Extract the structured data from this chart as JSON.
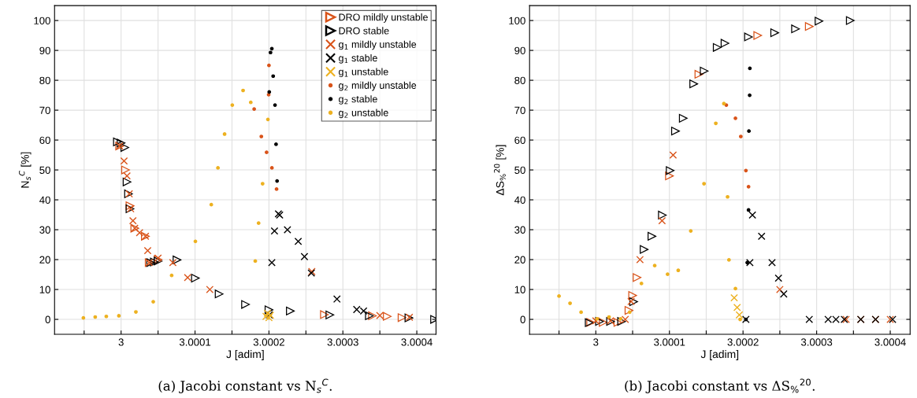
{
  "chart_data": [
    {
      "type": "scatter",
      "xlabel": "J [adim]",
      "ylabel": "N$_{s}$$^{C}$ [%]",
      "annotations": [
        "(a) Jacobi constant vs N$_{s}$$^{C}$."
      ],
      "xlim": [
        2.99991,
        3.000426
      ],
      "ylim": [
        -5,
        105
      ],
      "xticks": [
        {
          "value": 2.99995,
          "label": null
        },
        3,
        {
          "value": 3.00005,
          "label": null
        },
        3.0001,
        {
          "value": 3.00015,
          "label": null
        },
        3.0002,
        {
          "value": 3.00025,
          "label": null
        },
        3.0003,
        {
          "value": 3.00035,
          "label": null
        },
        3.0004
      ],
      "yticks": [
        0,
        10,
        20,
        30,
        40,
        50,
        60,
        70,
        80,
        90,
        100
      ],
      "grid": true,
      "legend": "top right",
      "series": [
        {
          "name": "DRO mildly unstable",
          "color": "#d95319",
          "marker": "triangle",
          "x": [
            2.999998,
            3.000006,
            3.000012,
            3.0000185,
            3.0000328,
            3.000038,
            3.00005,
            3.000275,
            3.00034,
            3.00036,
            3.00038
          ],
          "values": [
            58,
            50,
            38,
            30.5,
            27.8,
            19,
            20,
            1.6,
            1.2,
            1,
            0.6
          ]
        },
        {
          "name": "DRO stable",
          "color": "#000000",
          "marker": "triangle",
          "x": [
            2.999995,
            3.0,
            3.000005,
            3.000008,
            3.00001,
            3.000012,
            3.00004,
            3.000045,
            3.00005,
            3.0000756,
            3.0001005,
            3.0001326,
            3.0001683,
            3.0002,
            3.0002289,
            3.0002824,
            3.0003358,
            3.0003893,
            3.000424
          ],
          "values": [
            59.4,
            59,
            57.5,
            46,
            42,
            37,
            19,
            19.2,
            19.5,
            19.9,
            13.8,
            8.5,
            5,
            3.2,
            2.8,
            1.5,
            1.2,
            0.5,
            0
          ]
        },
        {
          "name": "g$_{1}$ mildly unstable",
          "color": "#d95319",
          "marker": "cross",
          "x": [
            2.999998,
            3.000004,
            3.000008,
            3.000011,
            3.000013,
            3.000016,
            3.0000185,
            3.000025,
            3.000033,
            3.000036,
            3.000038,
            3.00005,
            3.00007,
            3.00009,
            3.00012,
            3.000258,
            3.00035,
            3.00039
          ],
          "values": [
            58,
            53,
            48,
            42,
            37,
            33,
            30.5,
            29,
            27.8,
            23,
            19,
            20.5,
            19,
            14,
            10,
            16,
            1.3,
            0.7
          ]
        },
        {
          "name": "g$_{1}$ stable",
          "color": "#000000",
          "marker": "cross",
          "x": [
            3.0002004,
            3.0002039,
            3.0002075,
            3.0002128,
            3.0002145,
            3.000225,
            3.0002396,
            3.000248,
            3.0002573,
            3.000292,
            3.0003187,
            3.000328
          ],
          "values": [
            1.5,
            19,
            29.6,
            35.3,
            34.9,
            30,
            26.1,
            21,
            15.5,
            6.8,
            3.3,
            2.8
          ]
        },
        {
          "name": "g$_{1}$ unstable",
          "color": "#edb120",
          "marker": "cross",
          "x": [
            3.000196,
            3.000198,
            3.0002,
            3.000202
          ],
          "values": [
            1,
            2,
            0.6,
            1.4
          ]
        },
        {
          "name": "g$_{2}$ mildly unstable",
          "color": "#d95319",
          "marker": "circle",
          "x": [
            3.00018,
            3.0001897,
            3.0001968,
            3.0001996,
            3.0002,
            3.000204,
            3.0002103
          ],
          "values": [
            70.4,
            61.2,
            55.9,
            75.2,
            85,
            50.7,
            43.6
          ]
        },
        {
          "name": "g$_{2}$ stable",
          "color": "#000000",
          "marker": "circle",
          "x": [
            3.0002004,
            3.0002021,
            3.0002039,
            3.0002057,
            3.0002082,
            3.0002096,
            3.000211
          ],
          "values": [
            76.1,
            89.3,
            90.6,
            81.4,
            71.7,
            58.6,
            46.3
          ]
        },
        {
          "name": "g$_{2}$ unstable",
          "color": "#edb120",
          "marker": "circle",
          "x": [
            2.999949,
            2.999965,
            2.99998,
            2.999997,
            3.00002,
            3.0000435,
            3.0000684,
            3.0001005,
            3.000122,
            3.000131,
            3.00014,
            3.0001504,
            3.000165,
            3.0001754,
            3.0001815,
            3.000186,
            3.0001914,
            3.0001986
          ],
          "values": [
            0.5,
            0.8,
            1,
            1.2,
            2.5,
            5.9,
            14.7,
            26.1,
            38.4,
            50.7,
            62,
            71.7,
            76.6,
            72.6,
            19.5,
            32.2,
            45.4,
            66.9
          ]
        }
      ]
    },
    {
      "type": "scatter",
      "xlabel": "J [adim]",
      "ylabel": "ΔS$_{%}$$^{20}$ [%]",
      "annotations": [
        "(b) Jacobi constant vs ΔS$_{%}$$^{20}$."
      ],
      "xlim": [
        2.99991,
        3.000427
      ],
      "ylim": [
        -5,
        105
      ],
      "xticks": [
        {
          "value": 2.99995,
          "label": null
        },
        3,
        {
          "value": 3.00005,
          "label": null
        },
        3.0001,
        {
          "value": 3.00015,
          "label": null
        },
        3.0002,
        {
          "value": 3.00025,
          "label": null
        },
        3.0003,
        {
          "value": 3.00035,
          "label": null
        },
        3.0004
      ],
      "yticks": [
        0,
        10,
        20,
        30,
        40,
        50,
        60,
        70,
        80,
        90,
        100
      ],
      "grid": true,
      "series": [
        {
          "color": "#d95319",
          "marker": "triangle",
          "x": [
            2.999993,
            3.00001,
            3.00003,
            3.000045,
            3.00005,
            3.000056,
            3.0001,
            3.00014,
            3.00022,
            3.00029
          ],
          "values": [
            -1,
            -1,
            -1,
            3,
            8,
            14,
            48,
            82,
            95,
            98
          ]
        },
        {
          "color": "#000000",
          "marker": "triangle",
          "x": [
            2.999991,
            3.000005,
            3.00002,
            3.000035,
            3.0000514,
            3.0000656,
            3.0000762,
            3.0000904,
            3.000101,
            3.0001082,
            3.0001188,
            3.000133,
            3.0001472,
            3.0001649,
            3.0001755,
            3.0002074,
            3.000243,
            3.0002713,
            3.0003032,
            3.0003457
          ],
          "values": [
            -1.1,
            -0.7,
            -0.7,
            -0.7,
            5.9,
            23.4,
            27.8,
            34.9,
            49.8,
            63,
            67.3,
            78.8,
            83.1,
            91,
            92.4,
            94.5,
            95.9,
            97.2,
            99.8,
            100
          ]
        },
        {
          "color": "#d95319",
          "marker": "cross",
          "x": [
            3.0,
            3.00002,
            3.00004,
            3.000048,
            3.00006,
            3.00009,
            3.000105,
            3.00025,
            3.00034,
            3.00036,
            3.00038,
            3.0004
          ],
          "values": [
            -0.5,
            -0.5,
            0,
            6,
            20,
            33,
            55,
            10,
            0,
            0,
            0,
            0
          ]
        },
        {
          "color": "#000000",
          "marker": "cross",
          "x": [
            3.0002039,
            3.0002093,
            3.0002128,
            3.0002252,
            3.0002394,
            3.0002482,
            3.0002553,
            3.00029,
            3.0003156,
            3.0003262,
            3.0003376,
            3.00036,
            3.00038,
            3.0004032
          ],
          "values": [
            0,
            19,
            34.9,
            27.8,
            19,
            13.8,
            8.5,
            0,
            0,
            0,
            0,
            0,
            0,
            0
          ]
        },
        {
          "color": "#edb120",
          "marker": "cross",
          "x": [
            3.000188,
            3.000192,
            3.000195
          ],
          "values": [
            7.2,
            4,
            1.5
          ]
        },
        {
          "color": "#d95319",
          "marker": "circle",
          "x": [
            3.0001773,
            3.0001897,
            3.000197,
            3.0002039,
            3.0002075
          ],
          "values": [
            71.7,
            67.3,
            61.2,
            49.8,
            44.4
          ]
        },
        {
          "color": "#000000",
          "marker": "circle",
          "x": [
            3.0002093,
            3.000209,
            3.000208,
            3.0002075,
            3.0002057,
            3.0002039
          ],
          "values": [
            84,
            75,
            63,
            36.6,
            19,
            0
          ]
        },
        {
          "color": "#edb120",
          "marker": "circle",
          "x": [
            2.99995,
            2.999965,
            2.99998,
            3.0000018,
            3.000018,
            3.0000337,
            3.000046,
            3.000062,
            3.00008,
            3.0000975,
            3.000112,
            3.000129,
            3.000147,
            3.000163,
            3.000174,
            3.000179,
            3.0001809,
            3.0001897,
            3.0001961
          ],
          "values": [
            7.8,
            5.4,
            2.4,
            0.2,
            0.8,
            0.2,
            2.4,
            12,
            18,
            15.1,
            16.4,
            29.6,
            45.4,
            65.6,
            72.2,
            41,
            19.9,
            10.3,
            0
          ]
        }
      ]
    }
  ]
}
